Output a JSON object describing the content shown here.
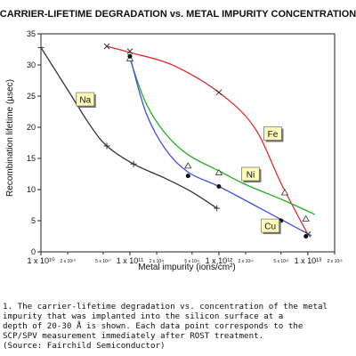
{
  "chart_data": {
    "type": "line",
    "title": "CARRIER-LIFETIME DEGRADATION vs. METAL IMPURITY CONCENTRATION",
    "xlabel": "Metal impurity (ions/cm²)",
    "ylabel": "Recombination lifetime (µsec)",
    "x_scale": "log",
    "xlim": [
      10000000000.0,
      20000000000000.0
    ],
    "ylim": [
      0,
      35
    ],
    "y_ticks": [
      0,
      5,
      10,
      15,
      20,
      25,
      30,
      35
    ],
    "x_ticks_major": [
      {
        "value": 10000000000.0,
        "label": "1 x 10¹⁰"
      },
      {
        "value": 100000000000.0,
        "label": "1 x 10¹¹"
      },
      {
        "value": 1000000000000.0,
        "label": "1 x 10¹²"
      },
      {
        "value": 10000000000000.0,
        "label": "1 x 10¹³"
      }
    ],
    "x_ticks_minor": [
      {
        "value": 20000000000.0,
        "label": "2 x 10¹⁰"
      },
      {
        "value": 50000000000.0,
        "label": "5 x 10¹⁰"
      },
      {
        "value": 200000000000.0,
        "label": "2 x 10¹¹"
      },
      {
        "value": 500000000000.0,
        "label": "5 x 10¹¹"
      },
      {
        "value": 2000000000000.0,
        "label": "2 x 10¹²"
      },
      {
        "value": 5000000000000.0,
        "label": "5 x 10¹²"
      },
      {
        "value": 20000000000000.0,
        "label": "2 x 10¹³"
      }
    ],
    "grid": false,
    "series": [
      {
        "name": "Na",
        "color": "#333333",
        "marker": "plus",
        "label_at": {
          "x": 25000000000.0,
          "y": 24.5
        },
        "x": [
          10000000000.0,
          55000000000.0,
          110000000000.0,
          950000000000.0
        ],
        "y": [
          32.8,
          17.0,
          14.1,
          7.0
        ],
        "curve": [
          [
            10000000000.0,
            32.8
          ],
          [
            20000000000.0,
            26
          ],
          [
            35000000000.0,
            20.5
          ],
          [
            55000000000.0,
            17.0
          ],
          [
            110000000000.0,
            14.1
          ],
          [
            250000000000.0,
            11.8
          ],
          [
            500000000000.0,
            9.6
          ],
          [
            950000000000.0,
            7.0
          ]
        ]
      },
      {
        "name": "Fe",
        "color": "#e03030",
        "marker": "x",
        "label_at": {
          "x": 3200000000000.0,
          "y": 19.0
        },
        "x": [
          55000000000.0,
          100000000000.0,
          1000000000000.0,
          10000000000000.0
        ],
        "y": [
          33.0,
          32.2,
          25.6,
          2.8
        ],
        "curve": [
          [
            55000000000.0,
            33.0
          ],
          [
            100000000000.0,
            32.0
          ],
          [
            300000000000.0,
            30.0
          ],
          [
            1000000000000.0,
            25.6
          ],
          [
            2500000000000.0,
            20.0
          ],
          [
            5000000000000.0,
            11.0
          ],
          [
            10000000000000.0,
            2.8
          ]
        ]
      },
      {
        "name": "Ni",
        "color": "#20b020",
        "marker": "triangle",
        "label_at": {
          "x": 1800000000000.0,
          "y": 12.5
        },
        "x": [
          100000000000.0,
          450000000000.0,
          1000000000000.0,
          5500000000000.0,
          9500000000000.0
        ],
        "y": [
          31.0,
          13.8,
          12.7,
          9.5,
          5.3
        ],
        "curve": [
          [
            100000000000.0,
            31.0
          ],
          [
            150000000000.0,
            24.0
          ],
          [
            250000000000.0,
            19.0
          ],
          [
            450000000000.0,
            15.6
          ],
          [
            1000000000000.0,
            13.0
          ],
          [
            2000000000000.0,
            10.8
          ],
          [
            5500000000000.0,
            8.2
          ],
          [
            12000000000000.0,
            6.0
          ]
        ]
      },
      {
        "name": "Cu",
        "color": "#4050e0",
        "marker": "dot",
        "label_at": {
          "x": 3000000000000.0,
          "y": 4.2
        },
        "x": [
          100000000000.0,
          450000000000.0,
          1000000000000.0,
          5000000000000.0,
          9500000000000.0
        ],
        "y": [
          31.4,
          12.2,
          10.5,
          5.0,
          2.5
        ],
        "curve": [
          [
            100000000000.0,
            31.4
          ],
          [
            150000000000.0,
            22.5
          ],
          [
            250000000000.0,
            16.5
          ],
          [
            450000000000.0,
            12.8
          ],
          [
            1000000000000.0,
            10.5
          ],
          [
            2500000000000.0,
            7.5
          ],
          [
            5000000000000.0,
            5.2
          ],
          [
            11000000000000.0,
            2.6
          ]
        ]
      }
    ]
  },
  "caption": "1. The carrier-lifetime degradation vs. concentration of the metal\nimpurity that was implanted into the silicon surface at a\ndepth of 20-30 Å is shown. Each data point corresponds to the\nSCP/SPV measurement immediately after ROST treatment.\n(Source: Fairchild Semiconductor)"
}
